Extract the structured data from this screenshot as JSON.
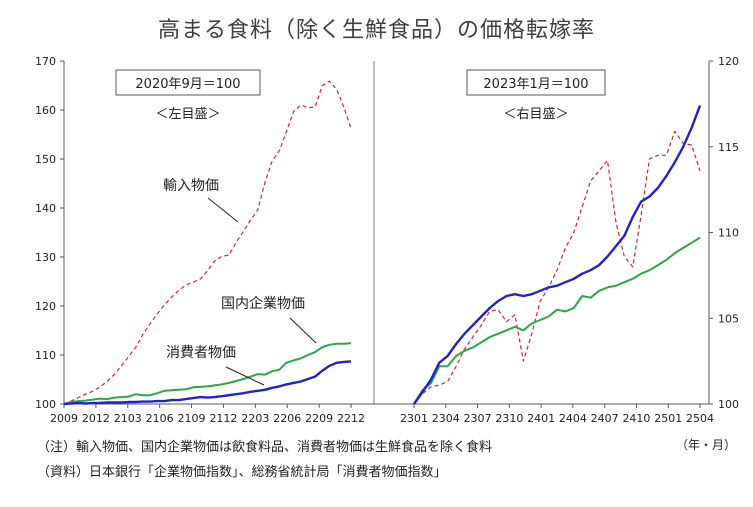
{
  "title": "高まる食料（除く生鮮食品）の価格転嫁率",
  "colors": {
    "import": "#d62728",
    "domestic": "#2aa84a",
    "consumer": "#2222cc",
    "axis": "#595959",
    "divider": "#7f7f7f"
  },
  "notes": {
    "unit": "（年・月）",
    "note1": "（注）輸入物価、国内企業物価は飲食料品、消費者物価は生鮮食品を除く食料",
    "note2": "（資料）日本銀行「企業物価指数」、総務省統計局「消費者物価指数」"
  },
  "chart_data": [
    {
      "type": "line",
      "panel": "left",
      "base_label": "2020年9月＝100",
      "axis_label": "＜左目盛＞",
      "ylim": [
        100,
        170
      ],
      "yticks": [
        100,
        110,
        120,
        130,
        140,
        150,
        160,
        170
      ],
      "xtick_labels": [
        "2009",
        "2012",
        "2103",
        "2106",
        "2109",
        "2112",
        "2203",
        "2206",
        "2209",
        "2212"
      ],
      "series": [
        {
          "name": "輸入物価",
          "style": "dashed",
          "color": "#d62728",
          "values": [
            100.0,
            100.6,
            101.3,
            102.0,
            102.6,
            103.5,
            104.6,
            106.0,
            107.8,
            109.7,
            111.6,
            114.2,
            116.4,
            118.4,
            120.2,
            121.8,
            123.2,
            124.3,
            124.9,
            125.5,
            127.2,
            129.2,
            130.1,
            130.4,
            133.0,
            135.2,
            137.6,
            139.6,
            145.2,
            149.6,
            151.7,
            155.6,
            159.7,
            161.0,
            160.5,
            160.6,
            165.0,
            165.9,
            164.2,
            160.6,
            156.2
          ]
        },
        {
          "name": "国内企業物価",
          "style": "solid",
          "color": "#2aa84a",
          "values": [
            100.0,
            100.4,
            100.6,
            100.7,
            100.9,
            101.1,
            101.0,
            101.3,
            101.4,
            101.5,
            102.0,
            101.8,
            101.8,
            102.2,
            102.7,
            102.8,
            102.9,
            103.0,
            103.4,
            103.5,
            103.6,
            103.8,
            104.0,
            104.3,
            104.7,
            105.1,
            105.6,
            106.1,
            106.0,
            106.7,
            107.0,
            108.4,
            108.9,
            109.3,
            110.0,
            110.6,
            111.6,
            112.1,
            112.3,
            112.3,
            112.4
          ]
        },
        {
          "name": "消費者物価",
          "style": "solid",
          "color": "#2222cc",
          "values": [
            100.0,
            100.1,
            100.2,
            100.1,
            100.2,
            100.2,
            100.3,
            100.3,
            100.3,
            100.4,
            100.4,
            100.5,
            100.5,
            100.6,
            100.6,
            100.8,
            100.8,
            101.0,
            101.2,
            101.4,
            101.3,
            101.4,
            101.6,
            101.8,
            102.0,
            102.2,
            102.5,
            102.7,
            102.9,
            103.3,
            103.6,
            104.0,
            104.3,
            104.6,
            105.1,
            105.6,
            106.8,
            107.8,
            108.4,
            108.6,
            108.7
          ]
        }
      ]
    },
    {
      "type": "line",
      "panel": "right",
      "base_label": "2023年1月＝100",
      "axis_label": "＜右目盛＞",
      "ylim": [
        100,
        120
      ],
      "yticks": [
        100,
        105,
        110,
        115,
        120
      ],
      "xtick_labels": [
        "2301",
        "2304",
        "2307",
        "2310",
        "2401",
        "2404",
        "2407",
        "2410",
        "2501",
        "2504"
      ],
      "series": [
        {
          "name": "輸入物価",
          "style": "dashed",
          "color": "#d62728",
          "values": [
            100.0,
            100.6,
            101.0,
            101.1,
            101.3,
            102.2,
            103.2,
            103.9,
            104.6,
            105.4,
            105.5,
            104.8,
            105.2,
            102.5,
            104.1,
            106.0,
            106.8,
            107.8,
            109.1,
            110.0,
            111.5,
            113.0,
            113.6,
            114.2,
            110.6,
            108.6,
            108.0,
            111.0,
            114.3,
            114.5,
            114.5,
            115.9,
            115.2,
            115.1,
            113.6
          ]
        },
        {
          "name": "国内企業物価",
          "style": "solid",
          "color": "#2aa84a",
          "values": [
            100.0,
            100.8,
            101.2,
            102.2,
            102.2,
            102.8,
            103.1,
            103.3,
            103.6,
            103.9,
            104.1,
            104.3,
            104.5,
            104.3,
            104.7,
            104.9,
            105.1,
            105.5,
            105.4,
            105.6,
            106.3,
            106.2,
            106.6,
            106.8,
            106.9,
            107.1,
            107.3,
            107.6,
            107.8,
            108.1,
            108.4,
            108.8,
            109.1,
            109.4,
            109.7
          ]
        },
        {
          "name": "消費者物価",
          "style": "solid",
          "color": "#2222cc",
          "values": [
            100.0,
            100.7,
            101.4,
            102.4,
            102.8,
            103.5,
            104.1,
            104.6,
            105.1,
            105.6,
            106.0,
            106.3,
            106.4,
            106.3,
            106.4,
            106.6,
            106.8,
            106.9,
            107.1,
            107.3,
            107.6,
            107.8,
            108.1,
            108.6,
            109.2,
            109.8,
            110.9,
            111.8,
            112.1,
            112.6,
            113.3,
            114.1,
            115.0,
            116.1,
            117.4
          ]
        }
      ]
    }
  ],
  "labels": {
    "import": "輸入物価",
    "domestic": "国内企業物価",
    "consumer": "消費者物価"
  }
}
